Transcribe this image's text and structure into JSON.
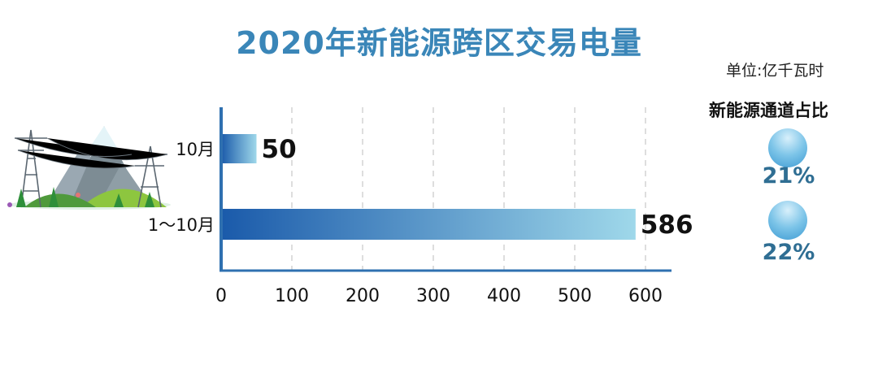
{
  "chart_data": {
    "type": "bar",
    "orientation": "horizontal",
    "title": "2020年新能源跨区交易电量",
    "unit": "单位:亿千瓦时",
    "categories": [
      "10月",
      "1～10月"
    ],
    "values": [
      50,
      586
    ],
    "xlim": [
      0,
      640
    ],
    "xticks": [
      0,
      100,
      200,
      300,
      400,
      500,
      600
    ],
    "grid": "vertical-dashed",
    "share": {
      "title": "新能源通道占比",
      "values": [
        "21%",
        "22%"
      ]
    },
    "colors": {
      "title": "#3a86b8",
      "bar_start": "#1a5aaa",
      "bar_end": "#9fd8ea",
      "axis": "#2f70b0",
      "percent": "#2f6e93"
    }
  }
}
